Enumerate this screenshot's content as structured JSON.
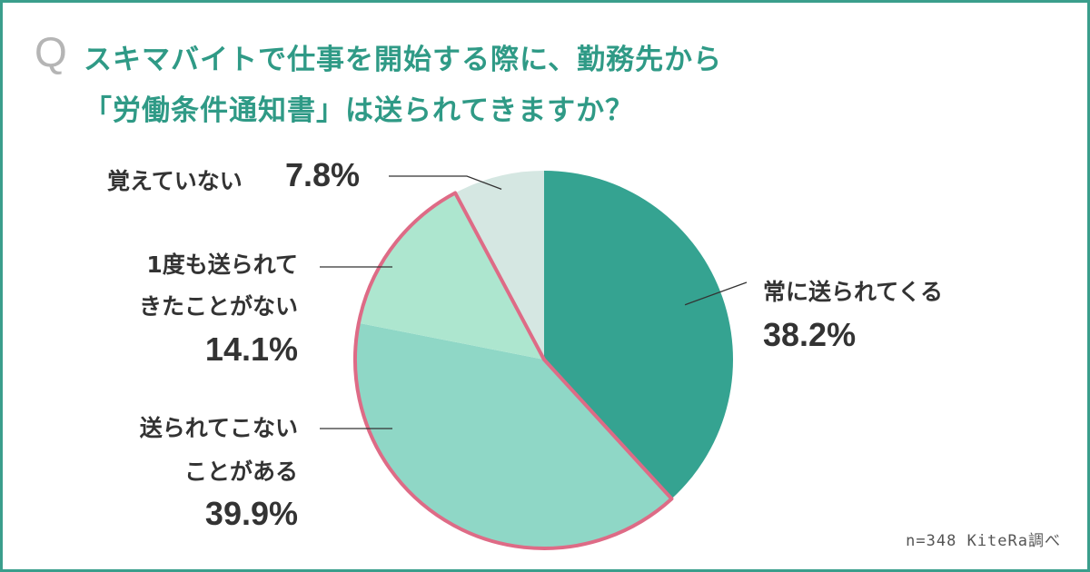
{
  "question": {
    "mark": "Q",
    "line1": "スキマバイトで仕事を開始する際に、勤務先から",
    "line2": "「労働条件通知書」は送られてきますか？"
  },
  "chart_data": {
    "type": "pie",
    "slices": [
      {
        "label_lines": [
          "常に送られてくる"
        ],
        "value": 38.2,
        "value_label": "38.2%",
        "color": "#35a391"
      },
      {
        "label_lines": [
          "送られてこない",
          "ことがある"
        ],
        "value": 39.9,
        "value_label": "39.9%",
        "color": "#8fd7c6"
      },
      {
        "label_lines": [
          "1度も送られて",
          "きたことがない"
        ],
        "value": 14.1,
        "value_label": "14.1%",
        "color": "#ade6cf"
      },
      {
        "label_lines": [
          "覚えていない"
        ],
        "value": 7.8,
        "value_label": "7.8%",
        "color": "#d5e7e2"
      }
    ],
    "highlight_color": "#de6b86"
  },
  "footnote": "n=348  KiteRa調べ"
}
